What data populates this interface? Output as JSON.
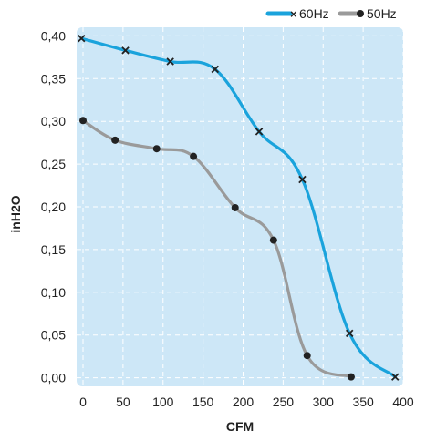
{
  "chart_data": {
    "type": "line",
    "xlabel": "CFM",
    "ylabel": "inH2O",
    "xlim": [
      -8,
      400
    ],
    "ylim": [
      -0.01,
      0.41
    ],
    "x_ticks": [
      "0",
      "50",
      "100",
      "150",
      "200",
      "250",
      "300",
      "350",
      "400"
    ],
    "y_ticks": [
      "0,40",
      "0,35",
      "0,30",
      "0,25",
      "0,20",
      "0,15",
      "0,10",
      "0,05",
      "0,00"
    ],
    "grid": true,
    "legend_position": "top-right",
    "series": [
      {
        "name": "60Hz",
        "color": "#1aa3dc",
        "marker": "x",
        "x": [
          -2,
          53,
          109,
          165,
          220,
          274,
          333,
          390
        ],
        "y": [
          0.397,
          0.383,
          0.37,
          0.361,
          0.288,
          0.232,
          0.052,
          0.001
        ]
      },
      {
        "name": "50Hz",
        "color": "#9a9a9a",
        "marker": "dot",
        "x": [
          0,
          40,
          92,
          138,
          190,
          238,
          280,
          335
        ],
        "y": [
          0.301,
          0.278,
          0.268,
          0.259,
          0.199,
          0.161,
          0.026,
          0.001
        ]
      }
    ]
  }
}
